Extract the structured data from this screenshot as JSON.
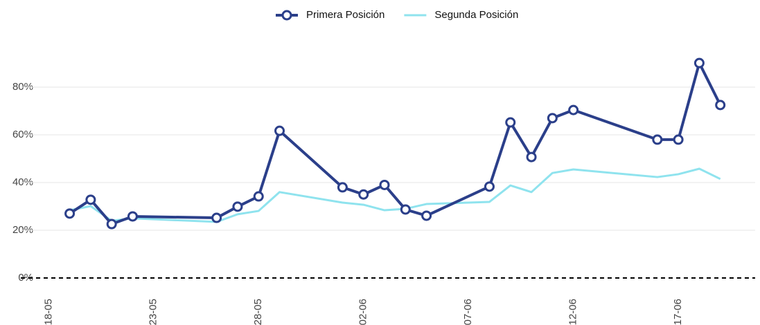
{
  "chart_data": {
    "type": "line",
    "x": [
      "19-05",
      "20-05",
      "21-05",
      "22-05",
      "26-05",
      "27-05",
      "28-05",
      "29-05",
      "01-06",
      "02-06",
      "03-06",
      "04-06",
      "05-06",
      "08-06",
      "09-06",
      "10-06",
      "11-06",
      "12-06",
      "16-06",
      "17-06",
      "18-06",
      "19-06"
    ],
    "series": [
      {
        "name": "Primera Posición",
        "color": "#2b3f8a",
        "markers": true,
        "values": [
          27,
          32.8,
          22.6,
          25.8,
          25.2,
          29.9,
          34.2,
          61.7,
          38,
          35,
          39,
          28.7,
          26.1,
          38.3,
          65.2,
          50.7,
          67,
          70.4,
          58,
          58,
          90.1,
          72.5
        ]
      },
      {
        "name": "Segunda Posición",
        "color": "#8fe3ee",
        "markers": false,
        "values": [
          28.4,
          30.1,
          24,
          25,
          23.5,
          26.7,
          28.1,
          36,
          31.6,
          30.7,
          28.4,
          29,
          31,
          31.9,
          38.8,
          36,
          44,
          45.5,
          42.3,
          43.5,
          45.8,
          41.5
        ]
      }
    ],
    "xlim": [
      "17-05",
      "20-06"
    ],
    "xticks": [
      "18-05",
      "23-05",
      "28-05",
      "02-06",
      "07-06",
      "12-06",
      "17-06"
    ],
    "ylim": [
      0,
      100
    ],
    "yticks": [
      {
        "value": 0,
        "label": "0%"
      },
      {
        "value": 20,
        "label": "20%"
      },
      {
        "value": 40,
        "label": "40%"
      },
      {
        "value": 60,
        "label": "60%"
      },
      {
        "value": 80,
        "label": "80%"
      }
    ],
    "grid": true,
    "legend": "top"
  }
}
